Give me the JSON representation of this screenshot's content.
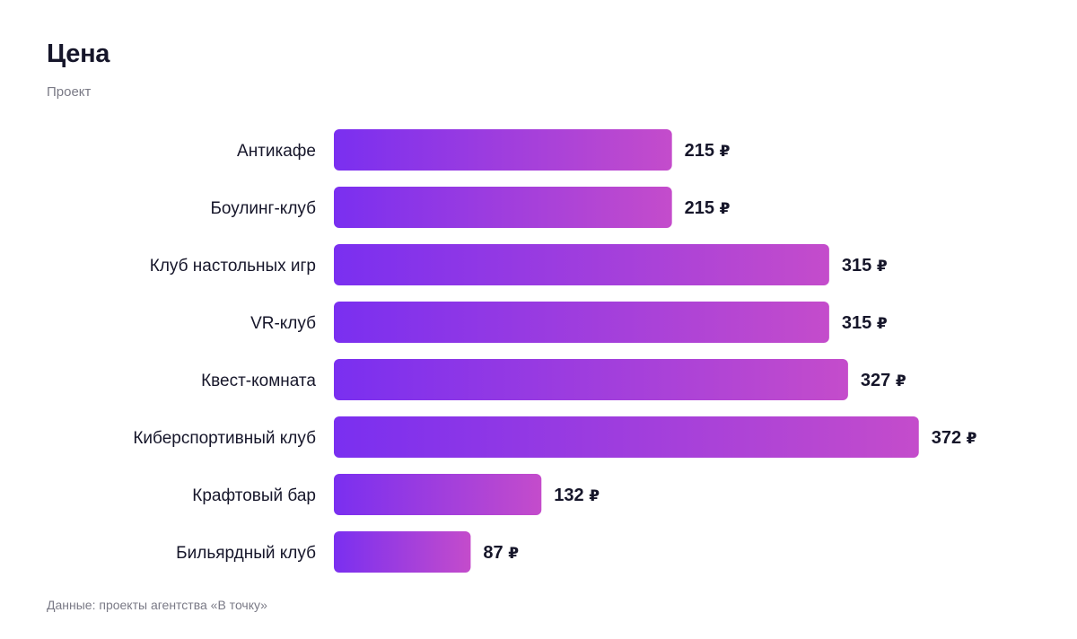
{
  "title": "Цена",
  "subtitle": "Проект",
  "footer": "Данные: проекты агентства «В точку»",
  "colors": {
    "bar_start": "#7a2ff0",
    "bar_end": "#c44ccb",
    "text": "#16162a",
    "muted": "#7a7a86"
  },
  "chart_data": {
    "type": "bar",
    "orientation": "horizontal",
    "unit": "₽",
    "categories": [
      "Антикафе",
      "Боулинг-клуб",
      "Клуб настольных игр",
      "VR-клуб",
      "Квест-комната",
      "Киберспортивный клуб",
      "Крафтовый бар",
      "Бильярдный клуб"
    ],
    "values": [
      215,
      215,
      315,
      315,
      327,
      372,
      132,
      87
    ],
    "grid": false,
    "legend": "none"
  }
}
